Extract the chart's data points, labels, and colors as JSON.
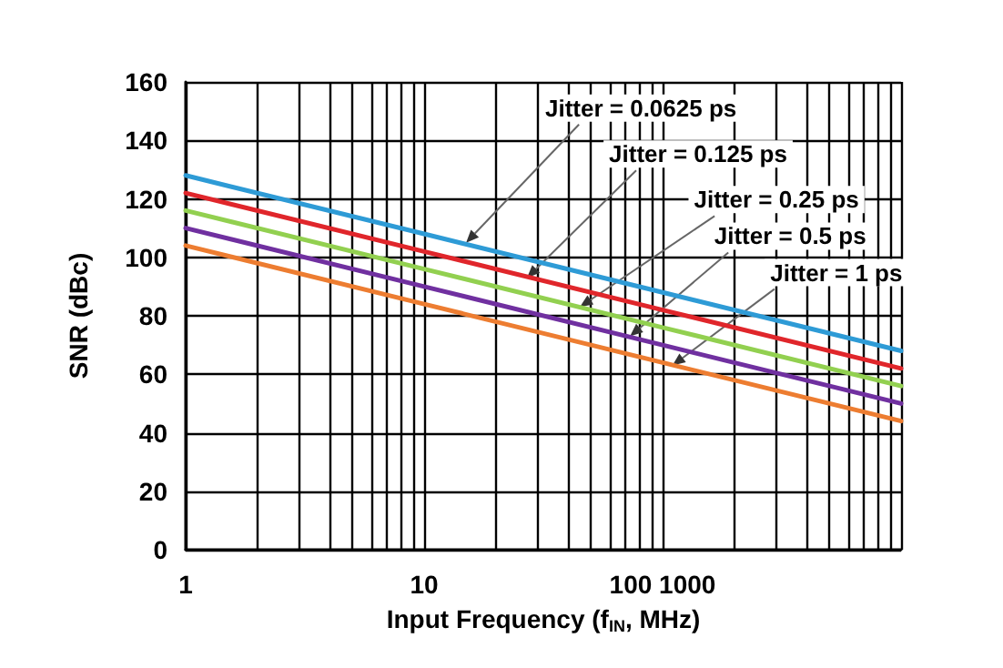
{
  "chart_data": {
    "type": "line",
    "xlabel": "Input Frequency (f$_{IN}$, MHz)",
    "ylabel": "SNR (dBc)",
    "x": [
      1,
      10,
      100,
      1000
    ],
    "series": [
      {
        "color": "#2e9bd6",
        "values": [
          128,
          108,
          88,
          68
        ]
      },
      {
        "color": "#e0262b",
        "values": [
          122,
          102,
          82,
          62
        ]
      },
      {
        "color": "#92d050",
        "values": [
          116,
          96,
          76,
          56
        ]
      },
      {
        "color": "#7030a0",
        "values": [
          110,
          90,
          70,
          50
        ]
      },
      {
        "color": "#ed7d31",
        "values": [
          104,
          84,
          64,
          44
        ]
      }
    ],
    "log": "x",
    "xlim": [
      1,
      1000
    ],
    "ylim": [
      0,
      160
    ],
    "xticks": [
      1,
      {
        "value": 2,
        "label": null
      },
      {
        "value": 3,
        "label": null
      },
      {
        "value": 4,
        "label": null
      },
      {
        "value": 5,
        "label": null
      },
      {
        "value": 6,
        "label": null
      },
      {
        "value": 7,
        "label": null
      },
      {
        "value": 8,
        "label": null
      },
      {
        "value": 9,
        "label": null
      },
      10,
      {
        "value": 20,
        "label": null
      },
      {
        "value": 30,
        "label": null
      },
      {
        "value": 40,
        "label": null
      },
      {
        "value": 50,
        "label": null
      },
      {
        "value": 60,
        "label": null
      },
      {
        "value": 70,
        "label": null
      },
      {
        "value": 80,
        "label": null
      },
      {
        "value": 90,
        "label": null
      },
      {
        "value": 100,
        "label": "100 1000"
      },
      {
        "value": 200,
        "label": null
      },
      {
        "value": 300,
        "label": null
      },
      {
        "value": 400,
        "label": null
      },
      {
        "value": 500,
        "label": null
      },
      {
        "value": 600,
        "label": null
      },
      {
        "value": 700,
        "label": null
      },
      {
        "value": 800,
        "label": null
      },
      {
        "value": 900,
        "label": null
      },
      {
        "value": 1000,
        "label": null
      }
    ],
    "yticks": [
      0,
      20,
      40,
      60,
      80,
      100,
      120,
      140,
      160
    ],
    "grid": true,
    "marker": "none",
    "line_style": "solid",
    "annotations": [
      {
        "text": "Jitter = 0.0625 ps",
        "x": 15,
        "y": 105
      },
      {
        "text": "Jitter = 0.125 ps",
        "x": 27,
        "y": 93
      },
      {
        "text": "Jitter = 0.25 ps",
        "x": 45,
        "y": 83
      },
      {
        "text": "Jitter = 0.5 ps",
        "x": 73,
        "y": 73
      },
      {
        "text": "Jitter = 1 ps",
        "x": 110,
        "y": 63
      }
    ]
  }
}
